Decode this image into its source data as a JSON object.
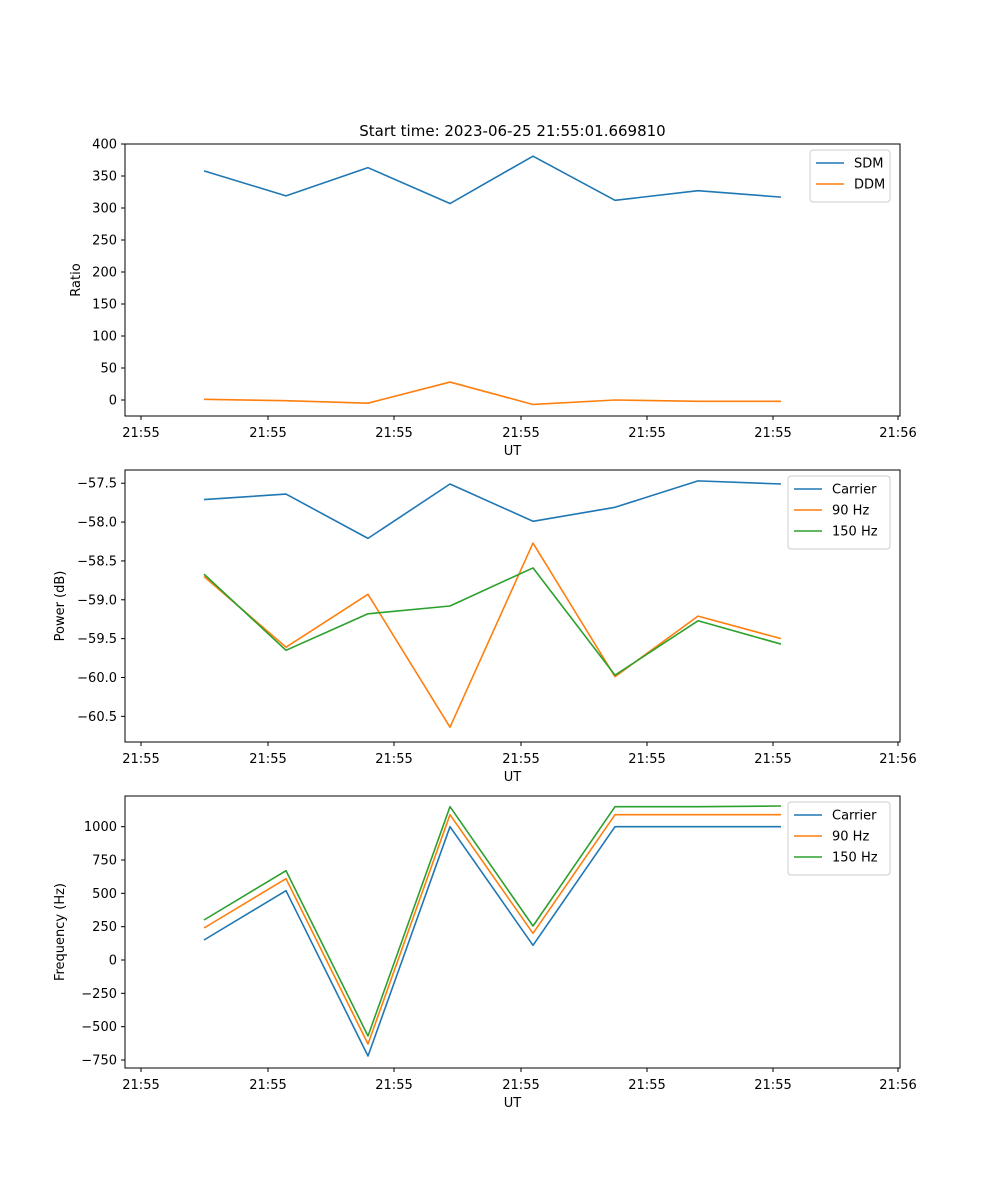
{
  "chart_data": [
    {
      "type": "line",
      "title": "Start time: 2023-06-25 21:55:01.669810",
      "xlabel": "UT",
      "ylabel": "Ratio",
      "x": [
        "21:55:01.8",
        "21:55:02.6",
        "21:55:03.4",
        "21:55:04.2",
        "21:55:05.0",
        "21:55:05.8",
        "21:55:06.6",
        "21:55:07.4"
      ],
      "x_tick_labels": [
        "21:55",
        "21:55",
        "21:55",
        "21:55",
        "21:55",
        "21:55",
        "21:56"
      ],
      "ylim": [
        -25,
        400
      ],
      "y_ticks": [
        0,
        50,
        100,
        150,
        200,
        250,
        300,
        350,
        400
      ],
      "legend_position": "upper right",
      "series": [
        {
          "name": "SDM",
          "color": "#1f77b4",
          "values": [
            358,
            319,
            363,
            307,
            381,
            312,
            327,
            317
          ]
        },
        {
          "name": "DDM",
          "color": "#ff7f0e",
          "values": [
            1,
            -1,
            -5,
            28,
            -7,
            0,
            -2,
            -2
          ]
        }
      ]
    },
    {
      "type": "line",
      "title": "",
      "xlabel": "UT",
      "ylabel": "Power (dB)",
      "x": [
        "21:55:01.8",
        "21:55:02.6",
        "21:55:03.4",
        "21:55:04.2",
        "21:55:05.0",
        "21:55:05.8",
        "21:55:06.6",
        "21:55:07.4"
      ],
      "x_tick_labels": [
        "21:55",
        "21:55",
        "21:55",
        "21:55",
        "21:55",
        "21:55",
        "21:56"
      ],
      "ylim": [
        -60.83,
        -57.33
      ],
      "y_ticks": [
        -60.5,
        -60.0,
        -59.5,
        -59.0,
        -58.5,
        -58.0,
        -57.5
      ],
      "legend_position": "upper right",
      "series": [
        {
          "name": "Carrier",
          "color": "#1f77b4",
          "values": [
            -57.71,
            -57.64,
            -58.21,
            -57.51,
            -57.99,
            -57.81,
            -57.47,
            -57.51
          ]
        },
        {
          "name": "90 Hz",
          "color": "#ff7f0e",
          "values": [
            -58.7,
            -59.61,
            -58.93,
            -60.64,
            -58.27,
            -59.99,
            -59.21,
            -59.5
          ]
        },
        {
          "name": "150 Hz",
          "color": "#2ca02c",
          "values": [
            -58.67,
            -59.65,
            -59.18,
            -59.08,
            -58.59,
            -59.97,
            -59.27,
            -59.57
          ]
        }
      ]
    },
    {
      "type": "line",
      "title": "",
      "xlabel": "UT",
      "ylabel": "Frequency (Hz)",
      "x": [
        "21:55:01.8",
        "21:55:02.6",
        "21:55:03.4",
        "21:55:04.2",
        "21:55:05.0",
        "21:55:05.8",
        "21:55:06.6",
        "21:55:07.4"
      ],
      "x_tick_labels": [
        "21:55",
        "21:55",
        "21:55",
        "21:55",
        "21:55",
        "21:55",
        "21:56"
      ],
      "ylim": [
        -810,
        1230
      ],
      "y_ticks": [
        -750,
        -500,
        -250,
        0,
        250,
        500,
        750,
        1000
      ],
      "legend_position": "upper right",
      "series": [
        {
          "name": "Carrier",
          "color": "#1f77b4",
          "values": [
            150,
            520,
            -720,
            1000,
            110,
            1000,
            1000,
            1000
          ]
        },
        {
          "name": "90 Hz",
          "color": "#ff7f0e",
          "values": [
            240,
            610,
            -630,
            1090,
            200,
            1090,
            1090,
            1090
          ]
        },
        {
          "name": "150 Hz",
          "color": "#2ca02c",
          "values": [
            300,
            670,
            -570,
            1150,
            255,
            1150,
            1150,
            1155
          ]
        }
      ]
    }
  ]
}
